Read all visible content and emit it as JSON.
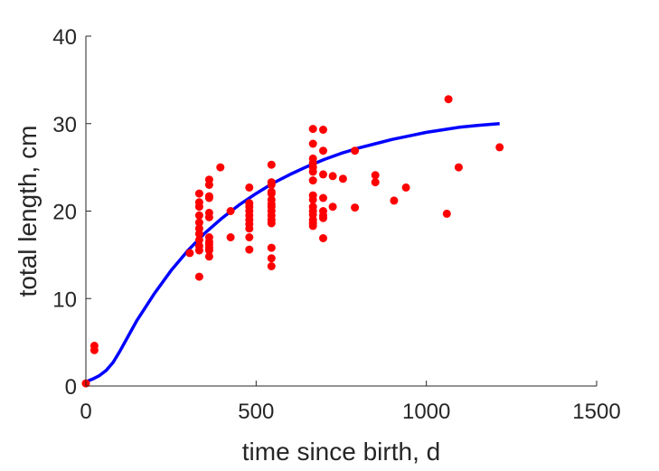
{
  "chart_data": {
    "type": "scatter",
    "title": "",
    "xlabel": "time since birth, d",
    "ylabel": "total length, cm",
    "xlim": [
      0,
      1500
    ],
    "ylim": [
      0,
      40
    ],
    "xticks": [
      0,
      500,
      1000,
      1500
    ],
    "yticks": [
      0,
      10,
      20,
      30,
      40
    ],
    "grid": false,
    "legend": "none",
    "colors": {
      "points": "#ff0000",
      "curve": "#0000ff",
      "axis": "#262626"
    },
    "series": [
      {
        "kind": "points",
        "x": [
          0,
          25,
          25,
          305,
          333,
          333,
          333,
          333,
          333,
          333,
          333,
          333,
          333,
          333,
          333,
          362,
          362,
          362,
          362,
          362,
          362,
          362,
          362,
          362,
          362,
          362,
          362,
          395,
          425,
          425,
          480,
          480,
          480,
          480,
          480,
          480,
          480,
          480,
          480,
          480,
          545,
          545,
          545,
          545,
          545,
          545,
          545,
          545,
          545,
          545,
          545,
          545,
          545,
          545,
          545,
          667,
          667,
          667,
          667,
          667,
          667,
          667,
          667,
          667,
          667,
          667,
          667,
          667,
          667,
          667,
          697,
          697,
          697,
          697,
          697,
          697,
          697,
          697,
          725,
          725,
          755,
          790,
          790,
          850,
          850,
          905,
          940,
          1060,
          1065,
          1095,
          1215
        ],
        "y": [
          0.3,
          4.6,
          4.1,
          15.2,
          22.0,
          21.0,
          20.5,
          19.5,
          18.7,
          18.0,
          17.4,
          16.7,
          16.0,
          15.5,
          12.5,
          23.6,
          23.0,
          21.7,
          21.5,
          19.8,
          19.3,
          17.0,
          16.5,
          16.2,
          15.8,
          15.5,
          14.8,
          25.0,
          20.0,
          17.0,
          22.7,
          20.9,
          20.5,
          20.0,
          19.5,
          19.0,
          18.5,
          18.0,
          17.0,
          15.6,
          25.3,
          23.3,
          23.0,
          22.2,
          22.0,
          21.3,
          20.8,
          20.5,
          20.0,
          19.5,
          19.0,
          18.6,
          15.8,
          14.6,
          13.7,
          29.4,
          27.7,
          26.0,
          25.5,
          25.0,
          24.5,
          23.5,
          21.8,
          21.3,
          20.5,
          20.0,
          19.6,
          19.0,
          18.6,
          18.3,
          29.3,
          26.9,
          24.2,
          21.5,
          20.0,
          19.5,
          19.2,
          16.9,
          24.0,
          20.5,
          23.7,
          26.9,
          20.4,
          24.1,
          23.3,
          21.2,
          22.7,
          19.7,
          32.8,
          25.0,
          27.3
        ]
      },
      {
        "kind": "line",
        "x": [
          0,
          20,
          40,
          60,
          80,
          100,
          150,
          200,
          250,
          300,
          350,
          400,
          450,
          500,
          550,
          600,
          650,
          700,
          750,
          800,
          850,
          900,
          950,
          1000,
          1050,
          1100,
          1150,
          1215
        ],
        "y": [
          0.5,
          0.8,
          1.2,
          1.8,
          2.7,
          4.0,
          7.5,
          10.5,
          13.2,
          15.5,
          17.5,
          19.2,
          20.7,
          22.0,
          23.2,
          24.2,
          25.1,
          25.9,
          26.6,
          27.2,
          27.7,
          28.2,
          28.6,
          29.0,
          29.3,
          29.6,
          29.8,
          30.0
        ]
      }
    ]
  }
}
